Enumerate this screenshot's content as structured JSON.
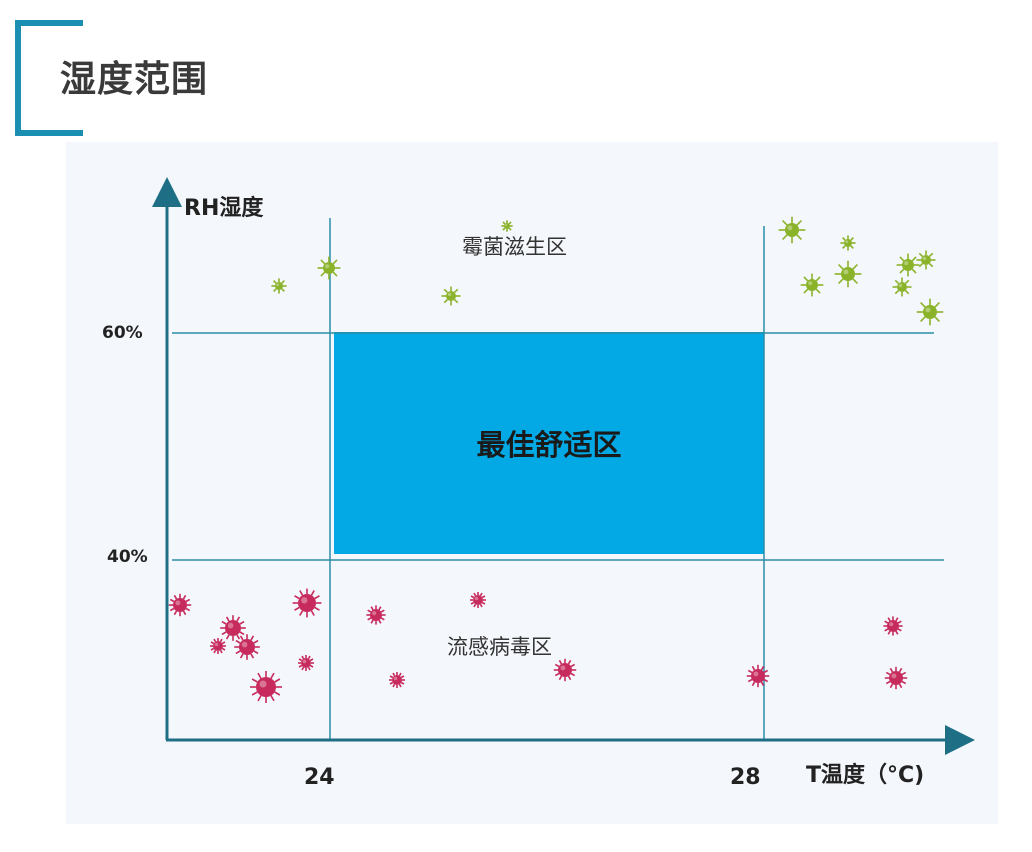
{
  "page": {
    "title": "湿度范围"
  },
  "diagram": {
    "y_axis_label": "RH湿度",
    "x_axis_label": "T温度（°C)",
    "y_ticks": [
      "60%",
      "40%"
    ],
    "x_ticks": [
      "24",
      "28"
    ],
    "zones": {
      "mold": "霉菌滋生区",
      "comfort": "最佳舒适区",
      "virus": "流感病毒区"
    },
    "colors": {
      "accent": "#1b8fb2",
      "comfort_fill": "#03a9e4",
      "axis": "#1e6f86",
      "gridline": "#2b8ea8",
      "mold_germ": "#8ab32a",
      "virus": "#c72a5c"
    },
    "icons": {
      "mold": "mold-germ-icon",
      "virus": "flu-virus-icon"
    }
  }
}
